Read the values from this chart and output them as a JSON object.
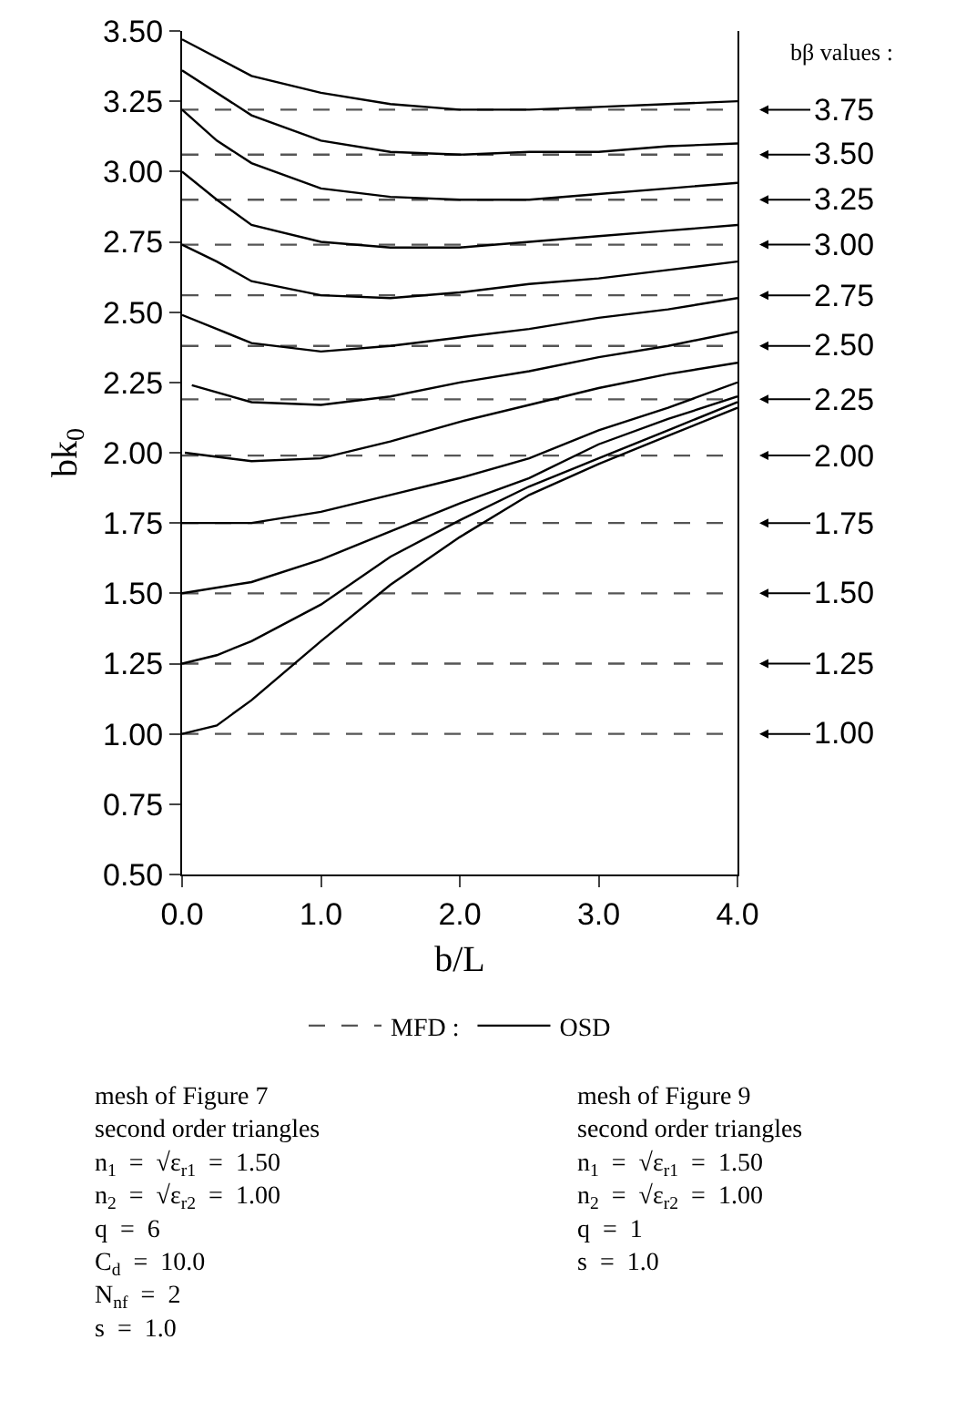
{
  "chart_data": {
    "type": "line",
    "xlabel": "b/L",
    "ylabel": "bk$_{0}$",
    "xlim": [
      0,
      4
    ],
    "ylim": [
      0.5,
      3.5
    ],
    "xticks": [
      {
        "value": 0,
        "label": "0.0"
      },
      {
        "value": 1,
        "label": "1.0"
      },
      {
        "value": 2,
        "label": "2.0"
      },
      {
        "value": 3,
        "label": "3.0"
      },
      {
        "value": 4,
        "label": "4.0"
      }
    ],
    "yticks": [
      {
        "value": 0.5,
        "label": "0.50"
      },
      0.75,
      {
        "value": 1,
        "label": "1.00"
      },
      1.25,
      {
        "value": 1.5,
        "label": "1.50"
      },
      1.75,
      {
        "value": 2,
        "label": "2.00"
      },
      2.25,
      {
        "value": 2.5,
        "label": "2.50"
      },
      2.75,
      {
        "value": 3,
        "label": "3.00"
      },
      3.25,
      {
        "value": 3.5,
        "label": "3.50"
      }
    ],
    "grid": false,
    "legend": "bottom",
    "marker": "none",
    "series": [
      {
        "name": "MFD :",
        "line_style": "dashed",
        "color": "#555555",
        "x": [
          0,
          4
        ],
        "values": [
          3.22,
          3.22
        ]
      },
      {
        "line_style": "dashed",
        "color": "#555555",
        "x": [
          0,
          4
        ],
        "values": [
          3.06,
          3.06
        ]
      },
      {
        "line_style": "dashed",
        "color": "#555555",
        "x": [
          0,
          4
        ],
        "values": [
          2.9,
          2.9
        ]
      },
      {
        "line_style": "dashed",
        "color": "#555555",
        "x": [
          0,
          4
        ],
        "values": [
          2.74,
          2.74
        ]
      },
      {
        "line_style": "dashed",
        "color": "#555555",
        "x": [
          0,
          4
        ],
        "values": [
          2.56,
          2.56
        ]
      },
      {
        "line_style": "dashed",
        "color": "#555555",
        "x": [
          0,
          4
        ],
        "values": [
          2.38,
          2.38
        ]
      },
      {
        "line_style": "dashed",
        "color": "#555555",
        "x": [
          0,
          4
        ],
        "values": [
          2.19,
          2.19
        ]
      },
      {
        "line_style": "dashed",
        "color": "#555555",
        "x": [
          0,
          4
        ],
        "values": [
          1.99,
          1.99
        ]
      },
      {
        "line_style": "dashed",
        "color": "#555555",
        "x": [
          0,
          4
        ],
        "values": [
          1.75,
          1.75
        ]
      },
      {
        "line_style": "dashed",
        "color": "#555555",
        "x": [
          0,
          4
        ],
        "values": [
          1.5,
          1.5
        ]
      },
      {
        "line_style": "dashed",
        "color": "#555555",
        "x": [
          0,
          4
        ],
        "values": [
          1.25,
          1.25
        ]
      },
      {
        "line_style": "dashed",
        "color": "#555555",
        "x": [
          0,
          4
        ],
        "values": [
          1.0,
          1.0
        ]
      },
      {
        "name": "OSD",
        "line_style": "solid",
        "color": "#000000",
        "x": [
          0,
          0.5,
          1,
          1.5,
          2,
          2.5,
          3,
          3.5,
          4
        ],
        "values": [
          3.47,
          3.34,
          3.28,
          3.24,
          3.22,
          3.22,
          3.23,
          3.24,
          3.25
        ]
      },
      {
        "line_style": "solid",
        "color": "#000000",
        "x": [
          0,
          0.5,
          1,
          1.5,
          2,
          2.5,
          3,
          3.5,
          4
        ],
        "values": [
          3.36,
          3.2,
          3.11,
          3.07,
          3.06,
          3.07,
          3.07,
          3.09,
          3.1
        ]
      },
      {
        "line_style": "solid",
        "color": "#000000",
        "x": [
          0,
          0.25,
          0.5,
          1,
          1.5,
          2,
          2.5,
          3,
          3.5,
          4
        ],
        "values": [
          3.22,
          3.11,
          3.03,
          2.94,
          2.91,
          2.9,
          2.9,
          2.92,
          2.94,
          2.96
        ]
      },
      {
        "line_style": "solid",
        "color": "#000000",
        "x": [
          0,
          0.25,
          0.5,
          1,
          1.5,
          2,
          2.5,
          3,
          3.5,
          4
        ],
        "values": [
          3.0,
          2.9,
          2.81,
          2.75,
          2.73,
          2.73,
          2.75,
          2.77,
          2.79,
          2.81
        ]
      },
      {
        "line_style": "solid",
        "color": "#000000",
        "x": [
          0,
          0.25,
          0.5,
          1,
          1.5,
          2,
          2.5,
          3,
          3.5,
          4
        ],
        "values": [
          2.74,
          2.68,
          2.61,
          2.56,
          2.55,
          2.57,
          2.6,
          2.62,
          2.65,
          2.68
        ]
      },
      {
        "line_style": "solid",
        "color": "#000000",
        "x": [
          0,
          0.25,
          0.5,
          1,
          1.5,
          2,
          2.5,
          3,
          3.5,
          4
        ],
        "values": [
          2.49,
          2.44,
          2.39,
          2.36,
          2.38,
          2.41,
          2.44,
          2.48,
          2.51,
          2.55
        ]
      },
      {
        "line_style": "solid",
        "color": "#000000",
        "x": [
          0.07,
          0.5,
          1,
          1.5,
          2,
          2.5,
          3,
          3.5,
          4
        ],
        "values": [
          2.24,
          2.18,
          2.17,
          2.2,
          2.25,
          2.29,
          2.34,
          2.38,
          2.43
        ]
      },
      {
        "line_style": "solid",
        "color": "#000000",
        "x": [
          0.02,
          0.5,
          1,
          1.5,
          2,
          2.5,
          3,
          3.5,
          4
        ],
        "values": [
          2.0,
          1.97,
          1.98,
          2.04,
          2.11,
          2.17,
          2.23,
          2.28,
          2.32
        ]
      },
      {
        "line_style": "solid",
        "color": "#000000",
        "x": [
          0,
          0.5,
          1,
          1.5,
          2,
          2.5,
          3,
          3.5,
          4
        ],
        "values": [
          1.75,
          1.75,
          1.79,
          1.85,
          1.91,
          1.98,
          2.08,
          2.16,
          2.25
        ]
      },
      {
        "line_style": "solid",
        "color": "#000000",
        "x": [
          0,
          0.5,
          1,
          1.5,
          2,
          2.5,
          3,
          3.5,
          4
        ],
        "values": [
          1.5,
          1.54,
          1.62,
          1.72,
          1.82,
          1.91,
          2.03,
          2.12,
          2.2
        ]
      },
      {
        "line_style": "solid",
        "color": "#000000",
        "x": [
          0,
          0.25,
          0.5,
          1,
          1.5,
          2,
          2.5,
          3,
          3.5,
          4
        ],
        "values": [
          1.25,
          1.28,
          1.33,
          1.46,
          1.63,
          1.76,
          1.88,
          1.98,
          2.08,
          2.18
        ]
      },
      {
        "line_style": "solid",
        "color": "#000000",
        "x": [
          0,
          0.25,
          0.5,
          1,
          1.5,
          2,
          2.5,
          3,
          3.5,
          4
        ],
        "values": [
          1.0,
          1.03,
          1.12,
          1.33,
          1.53,
          1.7,
          1.85,
          1.96,
          2.06,
          2.16
        ]
      }
    ],
    "annotations": [
      "bβ values :",
      "mesh of Figure 7\nsecond order triangles\nn$_{1}$  =  √ε$_{r1}$  =  1.50\nn$_{2}$  =  √ε$_{r2}$  =  1.00\nq  =  6\nC$_{d}$  =  10.0\nN$_{nf}$  =  2\ns  =  1.0",
      "mesh of Figure 9\nsecond order triangles\nn$_{1}$  =  √ε$_{r1}$  =  1.50\nn$_{2}$  =  √ε$_{r2}$  =  1.00\nq  =  1\ns  =  1.0",
      "3.75",
      "3.50",
      "3.25",
      "3.00",
      "2.75",
      "2.50",
      "2.25",
      "2.00",
      "1.75",
      "1.50",
      "1.25",
      "1.00"
    ]
  }
}
